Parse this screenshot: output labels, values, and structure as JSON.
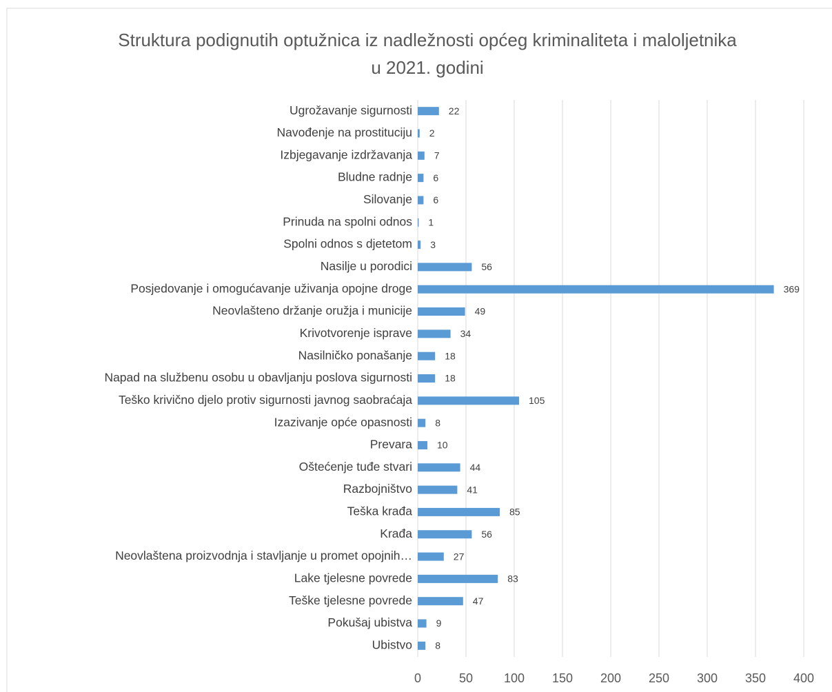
{
  "chart_data": {
    "type": "bar",
    "orientation": "horizontal",
    "title": "Struktura podignutih optužnica iz nadležnosti općeg kriminaliteta i maloljetnika u 2021. godini",
    "categories": [
      "Ugrožavanje sigurnosti",
      "Navođenje na prostituciju",
      "Izbjegavanje izdržavanja",
      "Bludne radnje",
      "Silovanje",
      "Prinuda na spolni odnos",
      "Spolni odnos s djetetom",
      "Nasilje u porodici",
      "Posjedovanje i omogućavanje uživanja opojne droge",
      "Neovlašteno držanje oružja i municije",
      "Krivotvorenje isprave",
      "Nasilničko ponašanje",
      "Napad na službenu osobu u obavljanju poslova sigurnosti",
      "Teško krivično djelo protiv sigurnosti javnog saobraćaja",
      "Izazivanje opće opasnosti",
      "Prevara",
      "Oštećenje tuđe stvari",
      "Razbojništvo",
      "Teška krađa",
      "Krađa",
      "Neovlaštena proizvodnja i stavljanje u promet opojnih…",
      "Lake tjelesne povrede",
      "Teške tjelesne povrede",
      "Pokušaj ubistva",
      "Ubistvo"
    ],
    "values": [
      22,
      2,
      7,
      6,
      6,
      1,
      3,
      56,
      369,
      49,
      34,
      18,
      18,
      105,
      8,
      10,
      44,
      41,
      85,
      56,
      27,
      83,
      47,
      9,
      8
    ],
    "color": "#5b9bd5",
    "xlim": [
      0,
      400
    ],
    "xticks": [
      0,
      50,
      100,
      150,
      200,
      250,
      300,
      350,
      400
    ],
    "grid": true
  }
}
